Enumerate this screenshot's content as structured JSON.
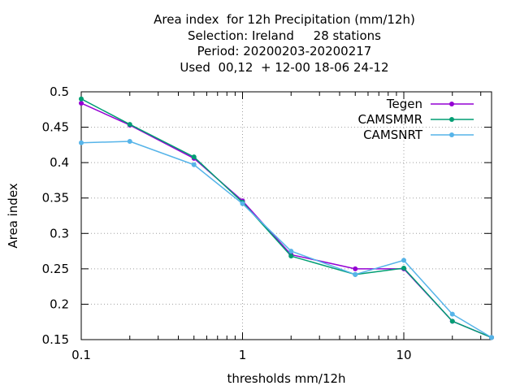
{
  "chart_data": {
    "type": "line",
    "title_lines": [
      "Area index  for 12h Precipitation (mm/12h)",
      "Selection: Ireland     28 stations",
      "Period: 20200203-20200217",
      "Used  00,12  + 12-00 18-06 24-12"
    ],
    "xlabel": "thresholds mm/12h",
    "ylabel": "Area index",
    "x_scale": "log",
    "xlim": [
      0.1,
      35
    ],
    "ylim": [
      0.15,
      0.5
    ],
    "x_ticks": [
      {
        "value": 0.1,
        "label": "0.1"
      },
      {
        "value": 1,
        "label": "1"
      },
      {
        "value": 10,
        "label": "10"
      }
    ],
    "y_ticks": [
      {
        "value": 0.15,
        "label": "0.15"
      },
      {
        "value": 0.2,
        "label": "0.2"
      },
      {
        "value": 0.25,
        "label": "0.25"
      },
      {
        "value": 0.3,
        "label": "0.3"
      },
      {
        "value": 0.35,
        "label": "0.35"
      },
      {
        "value": 0.4,
        "label": "0.4"
      },
      {
        "value": 0.45,
        "label": "0.45"
      },
      {
        "value": 0.5,
        "label": "0.5"
      }
    ],
    "grid": true,
    "legend_position": "top-right",
    "x": [
      0.1,
      0.2,
      0.5,
      1,
      2,
      5,
      10,
      20,
      35
    ],
    "series": [
      {
        "name": "Tegen",
        "color": "#9400d3",
        "values": [
          0.484,
          0.453,
          0.406,
          0.346,
          0.27,
          0.25,
          0.25,
          0.176,
          0.153
        ]
      },
      {
        "name": "CAMSMMR",
        "color": "#009e73",
        "values": [
          0.49,
          0.454,
          0.408,
          0.344,
          0.268,
          0.242,
          0.251,
          0.176,
          0.153
        ]
      },
      {
        "name": "CAMSNRT",
        "color": "#56b4e9",
        "values": [
          0.428,
          0.43,
          0.397,
          0.342,
          0.275,
          0.242,
          0.262,
          0.186,
          0.153
        ]
      }
    ]
  }
}
